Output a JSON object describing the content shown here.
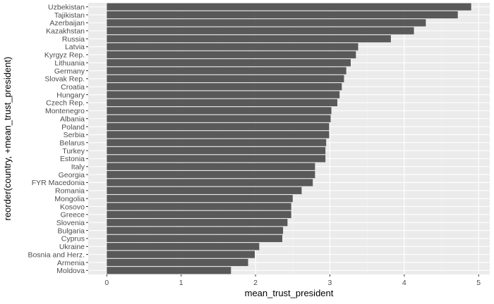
{
  "chart_data": {
    "type": "bar",
    "orientation": "horizontal",
    "title": "",
    "xlabel": "mean_trust_president",
    "ylabel": "reorder(country, +mean_trust_president)",
    "xlim": [
      -0.25,
      5.15
    ],
    "xticks": [
      0,
      1,
      2,
      3,
      4,
      5
    ],
    "grid": true,
    "categories": [
      "Uzbekistan",
      "Tajikistan",
      "Azerbaijan",
      "Kazakhstan",
      "Russia",
      "Latvia",
      "Kyrgyz Rep.",
      "Lithuania",
      "Germany",
      "Slovak Rep.",
      "Croatia",
      "Hungary",
      "Czech Rep.",
      "Montenegro",
      "Albania",
      "Poland",
      "Serbia",
      "Belarus",
      "Turkey",
      "Estonia",
      "Italy",
      "Georgia",
      "FYR Macedonia",
      "Romania",
      "Mongolia",
      "Kosovo",
      "Greece",
      "Slovenia",
      "Bulgaria",
      "Cyprus",
      "Ukraine",
      "Bosnia and Herz.",
      "Armenia",
      "Moldova"
    ],
    "values": [
      4.9,
      4.72,
      4.29,
      4.13,
      3.82,
      3.38,
      3.35,
      3.28,
      3.22,
      3.19,
      3.16,
      3.13,
      3.1,
      3.02,
      3.01,
      2.99,
      2.99,
      2.95,
      2.94,
      2.94,
      2.8,
      2.8,
      2.77,
      2.62,
      2.5,
      2.48,
      2.48,
      2.43,
      2.37,
      2.36,
      2.05,
      1.99,
      1.9,
      1.67
    ],
    "colors": {
      "bar": "#595959",
      "panel": "#ebebeb",
      "grid_major": "#ffffff",
      "grid_minor": "#f4f4f4",
      "tick_text": "#4d4d4d",
      "axis_title": "#000000"
    }
  }
}
